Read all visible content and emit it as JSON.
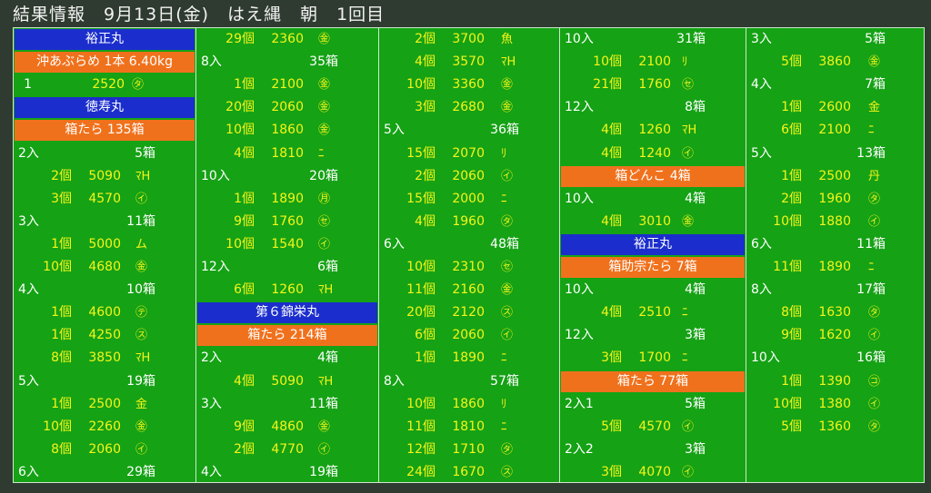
{
  "header": {
    "title": "結果情報　9月13日(金)　はえ縄　朝　1回目"
  },
  "columns": [
    {
      "rows": [
        {
          "t": "boat",
          "text": "裕正丸"
        },
        {
          "t": "fish",
          "text": "沖あぶらめ 1本 6.40kg"
        },
        {
          "t": "entry",
          "qty": "1",
          "price": "2520",
          "mark": "㋟",
          "first": true
        },
        {
          "t": "boat",
          "text": "徳寿丸"
        },
        {
          "t": "fish",
          "text": "箱たら 135箱"
        },
        {
          "t": "lot",
          "label": "2入",
          "total": "5箱"
        },
        {
          "t": "entry",
          "qty": "2個",
          "price": "5090",
          "mark": "ﾏH"
        },
        {
          "t": "entry",
          "qty": "3個",
          "price": "4570",
          "mark": "㋑"
        },
        {
          "t": "lot",
          "label": "3入",
          "total": "11箱"
        },
        {
          "t": "entry",
          "qty": "1個",
          "price": "5000",
          "mark": "ム"
        },
        {
          "t": "entry",
          "qty": "10個",
          "price": "4680",
          "mark": "㊎"
        },
        {
          "t": "lot",
          "label": "4入",
          "total": "10箱"
        },
        {
          "t": "entry",
          "qty": "1個",
          "price": "4600",
          "mark": "㋢"
        },
        {
          "t": "entry",
          "qty": "1個",
          "price": "4250",
          "mark": "㋜"
        },
        {
          "t": "entry",
          "qty": "8個",
          "price": "3850",
          "mark": "ﾏH"
        },
        {
          "t": "lot",
          "label": "5入",
          "total": "19箱"
        },
        {
          "t": "entry",
          "qty": "1個",
          "price": "2500",
          "mark": "金"
        },
        {
          "t": "entry",
          "qty": "10個",
          "price": "2260",
          "mark": "㊎"
        },
        {
          "t": "entry",
          "qty": "8個",
          "price": "2060",
          "mark": "㋑"
        },
        {
          "t": "lot",
          "label": "6入",
          "total": "29箱"
        }
      ]
    },
    {
      "rows": [
        {
          "t": "entry",
          "qty": "29個",
          "price": "2360",
          "mark": "㊎"
        },
        {
          "t": "lot",
          "label": "8入",
          "total": "35箱"
        },
        {
          "t": "entry",
          "qty": "1個",
          "price": "2100",
          "mark": "㊎"
        },
        {
          "t": "entry",
          "qty": "20個",
          "price": "2060",
          "mark": "㊎"
        },
        {
          "t": "entry",
          "qty": "10個",
          "price": "1860",
          "mark": "㊎"
        },
        {
          "t": "entry",
          "qty": "4個",
          "price": "1810",
          "mark": "ﾆ"
        },
        {
          "t": "lot",
          "label": "10入",
          "total": "20箱"
        },
        {
          "t": "entry",
          "qty": "1個",
          "price": "1890",
          "mark": "㊊"
        },
        {
          "t": "entry",
          "qty": "9個",
          "price": "1760",
          "mark": "㋝"
        },
        {
          "t": "entry",
          "qty": "10個",
          "price": "1540",
          "mark": "㋑"
        },
        {
          "t": "lot",
          "label": "12入",
          "total": "6箱"
        },
        {
          "t": "entry",
          "qty": "6個",
          "price": "1260",
          "mark": "ﾏH"
        },
        {
          "t": "boat",
          "text": "第６錦栄丸"
        },
        {
          "t": "fish",
          "text": "箱たら 214箱"
        },
        {
          "t": "lot",
          "label": "2入",
          "total": "4箱"
        },
        {
          "t": "entry",
          "qty": "4個",
          "price": "5090",
          "mark": "ﾏH"
        },
        {
          "t": "lot",
          "label": "3入",
          "total": "11箱"
        },
        {
          "t": "entry",
          "qty": "9個",
          "price": "4860",
          "mark": "㊎"
        },
        {
          "t": "entry",
          "qty": "2個",
          "price": "4770",
          "mark": "㋑"
        },
        {
          "t": "lot",
          "label": "4入",
          "total": "19箱"
        }
      ]
    },
    {
      "rows": [
        {
          "t": "entry",
          "qty": "2個",
          "price": "3700",
          "mark": "魚"
        },
        {
          "t": "entry",
          "qty": "4個",
          "price": "3570",
          "mark": "ﾏH"
        },
        {
          "t": "entry",
          "qty": "10個",
          "price": "3360",
          "mark": "㊎"
        },
        {
          "t": "entry",
          "qty": "3個",
          "price": "2680",
          "mark": "㊎"
        },
        {
          "t": "lot",
          "label": "5入",
          "total": "36箱"
        },
        {
          "t": "entry",
          "qty": "15個",
          "price": "2070",
          "mark": "ﾘ"
        },
        {
          "t": "entry",
          "qty": "2個",
          "price": "2060",
          "mark": "㋑"
        },
        {
          "t": "entry",
          "qty": "15個",
          "price": "2000",
          "mark": "ﾆ"
        },
        {
          "t": "entry",
          "qty": "4個",
          "price": "1960",
          "mark": "㋟"
        },
        {
          "t": "lot",
          "label": "6入",
          "total": "48箱"
        },
        {
          "t": "entry",
          "qty": "10個",
          "price": "2310",
          "mark": "㋝"
        },
        {
          "t": "entry",
          "qty": "11個",
          "price": "2160",
          "mark": "㊎"
        },
        {
          "t": "entry",
          "qty": "20個",
          "price": "2120",
          "mark": "㋜"
        },
        {
          "t": "entry",
          "qty": "6個",
          "price": "2060",
          "mark": "㋑"
        },
        {
          "t": "entry",
          "qty": "1個",
          "price": "1890",
          "mark": "ﾆ"
        },
        {
          "t": "lot",
          "label": "8入",
          "total": "57箱"
        },
        {
          "t": "entry",
          "qty": "10個",
          "price": "1860",
          "mark": "ﾘ"
        },
        {
          "t": "entry",
          "qty": "11個",
          "price": "1810",
          "mark": "ﾆ"
        },
        {
          "t": "entry",
          "qty": "12個",
          "price": "1710",
          "mark": "㋟"
        },
        {
          "t": "entry",
          "qty": "24個",
          "price": "1670",
          "mark": "㋜"
        }
      ]
    },
    {
      "rows": [
        {
          "t": "lot",
          "label": "10入",
          "total": "31箱"
        },
        {
          "t": "entry",
          "qty": "10個",
          "price": "2100",
          "mark": "ﾘ"
        },
        {
          "t": "entry",
          "qty": "21個",
          "price": "1760",
          "mark": "㋝"
        },
        {
          "t": "lot",
          "label": "12入",
          "total": "8箱"
        },
        {
          "t": "entry",
          "qty": "4個",
          "price": "1260",
          "mark": "ﾏH"
        },
        {
          "t": "entry",
          "qty": "4個",
          "price": "1240",
          "mark": "㋑"
        },
        {
          "t": "fish",
          "text": "箱どんこ 4箱"
        },
        {
          "t": "lot",
          "label": "10入",
          "total": "4箱"
        },
        {
          "t": "entry",
          "qty": "4個",
          "price": "3010",
          "mark": "㊎"
        },
        {
          "t": "boat",
          "text": "裕正丸"
        },
        {
          "t": "fish",
          "text": "箱助宗たら 7箱"
        },
        {
          "t": "lot",
          "label": "10入",
          "total": "4箱"
        },
        {
          "t": "entry",
          "qty": "4個",
          "price": "2510",
          "mark": "ﾆ"
        },
        {
          "t": "lot",
          "label": "12入",
          "total": "3箱"
        },
        {
          "t": "entry",
          "qty": "3個",
          "price": "1700",
          "mark": "ﾆ"
        },
        {
          "t": "fish",
          "text": "箱たら 77箱"
        },
        {
          "t": "lot",
          "label": "2入1",
          "total": "5箱"
        },
        {
          "t": "entry",
          "qty": "5個",
          "price": "4570",
          "mark": "㋑"
        },
        {
          "t": "lot",
          "label": "2入2",
          "total": "3箱"
        },
        {
          "t": "entry",
          "qty": "3個",
          "price": "4070",
          "mark": "㋑"
        }
      ]
    },
    {
      "rows": [
        {
          "t": "lot",
          "label": "3入",
          "total": "5箱"
        },
        {
          "t": "entry",
          "qty": "5個",
          "price": "3860",
          "mark": "㊎"
        },
        {
          "t": "lot",
          "label": "4入",
          "total": "7箱"
        },
        {
          "t": "entry",
          "qty": "1個",
          "price": "2600",
          "mark": "金"
        },
        {
          "t": "entry",
          "qty": "6個",
          "price": "2100",
          "mark": "ﾆ"
        },
        {
          "t": "lot",
          "label": "5入",
          "total": "13箱"
        },
        {
          "t": "entry",
          "qty": "1個",
          "price": "2500",
          "mark": "丹"
        },
        {
          "t": "entry",
          "qty": "2個",
          "price": "1960",
          "mark": "㋟"
        },
        {
          "t": "entry",
          "qty": "10個",
          "price": "1880",
          "mark": "㋑"
        },
        {
          "t": "lot",
          "label": "6入",
          "total": "11箱"
        },
        {
          "t": "entry",
          "qty": "11個",
          "price": "1890",
          "mark": "ﾆ"
        },
        {
          "t": "lot",
          "label": "8入",
          "total": "17箱"
        },
        {
          "t": "entry",
          "qty": "8個",
          "price": "1630",
          "mark": "㋟"
        },
        {
          "t": "entry",
          "qty": "9個",
          "price": "1620",
          "mark": "㋑"
        },
        {
          "t": "lot",
          "label": "10入",
          "total": "16箱"
        },
        {
          "t": "entry",
          "qty": "1個",
          "price": "1390",
          "mark": "㋙"
        },
        {
          "t": "entry",
          "qty": "10個",
          "price": "1380",
          "mark": "㋑"
        },
        {
          "t": "entry",
          "qty": "5個",
          "price": "1360",
          "mark": "㋟"
        }
      ]
    }
  ]
}
